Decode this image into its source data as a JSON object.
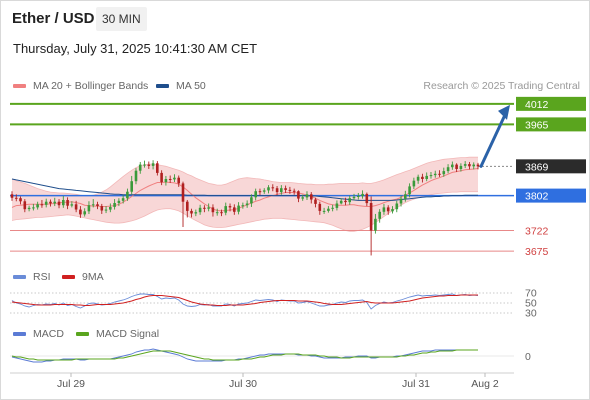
{
  "header": {
    "title": "Ether / USD",
    "timeframe": "30 MIN",
    "datetime": "Thursday, July 31, 2025 10:41:30 AM CET"
  },
  "legend": {
    "ma20_label": "MA 20 + Bollinger Bands",
    "ma50_label": "MA 50",
    "credit": "Research © 2025 Trading Central",
    "rsi_label": "RSI",
    "rsi_ma_label": "9MA",
    "macd_label": "MACD",
    "macd_signal_label": "MACD Signal"
  },
  "colors": {
    "bollinger_fill": "#f8d7d7",
    "ma20": "#f08080",
    "ma50": "#1f4e8c",
    "candle_up": "#3a9a3a",
    "candle_down": "#b02020",
    "resistance": "#5aa51e",
    "pivot": "#2f6fe0",
    "support": "#e88888",
    "last_price": "#2b2b2b",
    "arrow": "#2b62a8",
    "rsi": "#6a8cd8",
    "rsi_ma": "#d02020",
    "macd": "#5b7bd5",
    "macd_signal": "#5aa51e"
  },
  "chart_data": {
    "type": "candlestick",
    "symbol": "Ether / USD",
    "interval": "30 MIN",
    "x_tick_labels": [
      "Jul 29",
      "Jul 30",
      "Jul 31",
      "Aug 2"
    ],
    "y_range": [
      3650,
      4030
    ],
    "levels": [
      {
        "kind": "resistance",
        "value": 4012,
        "label": "4012"
      },
      {
        "kind": "resistance",
        "value": 3965,
        "label": "3965"
      },
      {
        "kind": "last",
        "value": 3869,
        "label": "3869"
      },
      {
        "kind": "pivot",
        "value": 3802,
        "label": "3802"
      },
      {
        "kind": "support",
        "value": 3722,
        "label": "3722"
      },
      {
        "kind": "support",
        "value": 3675,
        "label": "3675"
      }
    ],
    "forecast_arrow": {
      "from": 3869,
      "to": 4012
    },
    "candles": {
      "open": [
        3805,
        3797,
        3796,
        3789,
        3771,
        3774,
        3775,
        3782,
        3781,
        3788,
        3784,
        3788,
        3780,
        3792,
        3779,
        3782,
        3770,
        3759,
        3766,
        3780,
        3782,
        3778,
        3768,
        3770,
        3776,
        3785,
        3790,
        3796,
        3811,
        3835,
        3859,
        3873,
        3873,
        3870,
        3876,
        3854,
        3833,
        3840,
        3839,
        3843,
        3830,
        3788,
        3767,
        3761,
        3764,
        3774,
        3772,
        3775,
        3764,
        3764,
        3763,
        3778,
        3775,
        3765,
        3779,
        3780,
        3784,
        3798,
        3812,
        3811,
        3814,
        3821,
        3819,
        3810,
        3819,
        3815,
        3813,
        3812,
        3795,
        3798,
        3805,
        3793,
        3783,
        3767,
        3767,
        3772,
        3774,
        3784,
        3790,
        3787,
        3796,
        3799,
        3801,
        3806,
        3785,
        3722,
        3749,
        3765,
        3775,
        3766,
        3771,
        3784,
        3795,
        3805,
        3823,
        3836,
        3845,
        3840,
        3847,
        3849,
        3852,
        3851,
        3858,
        3867,
        3873,
        3863,
        3870,
        3874,
        3869,
        3873
      ],
      "close": [
        3797,
        3796,
        3789,
        3771,
        3774,
        3775,
        3782,
        3781,
        3788,
        3784,
        3788,
        3780,
        3792,
        3779,
        3782,
        3770,
        3759,
        3766,
        3780,
        3782,
        3778,
        3768,
        3770,
        3776,
        3785,
        3790,
        3796,
        3811,
        3835,
        3859,
        3873,
        3873,
        3870,
        3876,
        3854,
        3833,
        3840,
        3839,
        3843,
        3830,
        3788,
        3767,
        3761,
        3764,
        3774,
        3772,
        3775,
        3764,
        3764,
        3763,
        3778,
        3775,
        3765,
        3779,
        3780,
        3784,
        3798,
        3812,
        3811,
        3814,
        3821,
        3819,
        3810,
        3819,
        3815,
        3813,
        3812,
        3795,
        3798,
        3805,
        3793,
        3783,
        3767,
        3767,
        3772,
        3774,
        3784,
        3790,
        3787,
        3796,
        3799,
        3801,
        3806,
        3785,
        3722,
        3749,
        3765,
        3775,
        3766,
        3771,
        3784,
        3795,
        3805,
        3823,
        3836,
        3845,
        3840,
        3847,
        3849,
        3852,
        3851,
        3858,
        3867,
        3873,
        3863,
        3870,
        3874,
        3869,
        3873,
        3869
      ],
      "high": [
        3812,
        3805,
        3800,
        3794,
        3779,
        3783,
        3788,
        3792,
        3795,
        3793,
        3797,
        3794,
        3801,
        3798,
        3789,
        3790,
        3778,
        3773,
        3789,
        3794,
        3788,
        3783,
        3778,
        3784,
        3794,
        3796,
        3803,
        3818,
        3847,
        3865,
        3879,
        3882,
        3880,
        3883,
        3881,
        3860,
        3847,
        3848,
        3851,
        3848,
        3834,
        3792,
        3772,
        3770,
        3781,
        3780,
        3784,
        3782,
        3772,
        3770,
        3786,
        3784,
        3782,
        3787,
        3786,
        3791,
        3805,
        3818,
        3818,
        3819,
        3826,
        3828,
        3824,
        3826,
        3825,
        3822,
        3818,
        3814,
        3804,
        3812,
        3810,
        3797,
        3788,
        3774,
        3778,
        3781,
        3791,
        3796,
        3797,
        3802,
        3806,
        3808,
        3814,
        3809,
        3800,
        3760,
        3771,
        3783,
        3780,
        3778,
        3790,
        3802,
        3813,
        3830,
        3843,
        3850,
        3852,
        3855,
        3856,
        3859,
        3860,
        3866,
        3874,
        3880,
        3876,
        3876,
        3881,
        3879,
        3878,
        3877
      ],
      "low": [
        3790,
        3789,
        3782,
        3764,
        3766,
        3768,
        3770,
        3774,
        3775,
        3777,
        3778,
        3773,
        3774,
        3771,
        3775,
        3764,
        3751,
        3754,
        3760,
        3775,
        3771,
        3760,
        3762,
        3764,
        3770,
        3778,
        3784,
        3790,
        3805,
        3828,
        3852,
        3866,
        3863,
        3862,
        3848,
        3826,
        3825,
        3831,
        3833,
        3822,
        3730,
        3752,
        3752,
        3755,
        3758,
        3764,
        3766,
        3754,
        3756,
        3755,
        3757,
        3766,
        3758,
        3759,
        3772,
        3774,
        3776,
        3791,
        3803,
        3806,
        3807,
        3812,
        3803,
        3804,
        3808,
        3806,
        3804,
        3787,
        3790,
        3792,
        3784,
        3775,
        3758,
        3760,
        3763,
        3766,
        3768,
        3782,
        3780,
        3781,
        3791,
        3793,
        3795,
        3778,
        3665,
        3715,
        3740,
        3758,
        3758,
        3761,
        3764,
        3777,
        3788,
        3798,
        3817,
        3829,
        3832,
        3835,
        3841,
        3843,
        3845,
        3845,
        3853,
        3861,
        3856,
        3857,
        3865,
        3862,
        3862,
        3862
      ]
    },
    "ma20": [
      3775,
      3779,
      3780,
      3781,
      3782,
      3782,
      3782,
      3782,
      3782,
      3783,
      3784,
      3785,
      3787,
      3787,
      3788,
      3786,
      3784,
      3780,
      3779,
      3778,
      3778,
      3777,
      3777,
      3778,
      3779,
      3782,
      3787,
      3793,
      3800,
      3807,
      3814,
      3819,
      3824,
      3828,
      3832,
      3832,
      3833,
      3832,
      3831,
      3828,
      3822,
      3814,
      3805,
      3797,
      3790,
      3783,
      3777,
      3771,
      3768,
      3767,
      3768,
      3769,
      3770,
      3773,
      3777,
      3781,
      3785,
      3789,
      3792,
      3796,
      3799,
      3802,
      3805,
      3807,
      3809,
      3809,
      3809,
      3808,
      3806,
      3803,
      3800,
      3796,
      3791,
      3787,
      3783,
      3781,
      3780,
      3780,
      3780,
      3781,
      3781,
      3779,
      3778,
      3777,
      3777,
      3779,
      3782,
      3786,
      3789,
      3792,
      3794,
      3798,
      3803,
      3808,
      3814,
      3820,
      3826,
      3831,
      3836,
      3840,
      3843,
      3847,
      3851,
      3855,
      3857,
      3859,
      3861,
      3862,
      3863,
      3864
    ],
    "bb_upper": [
      3840,
      3836,
      3833,
      3830,
      3826,
      3822,
      3818,
      3815,
      3812,
      3810,
      3809,
      3808,
      3808,
      3807,
      3806,
      3805,
      3803,
      3802,
      3802,
      3803,
      3806,
      3810,
      3815,
      3822,
      3830,
      3838,
      3846,
      3853,
      3860,
      3866,
      3870,
      3873,
      3874,
      3874,
      3873,
      3871,
      3869,
      3866,
      3863,
      3860,
      3856,
      3851,
      3847,
      3842,
      3838,
      3834,
      3830,
      3828,
      3826,
      3826,
      3828,
      3832,
      3836,
      3840,
      3842,
      3843,
      3842,
      3841,
      3840,
      3838,
      3836,
      3834,
      3833,
      3832,
      3832,
      3832,
      3831,
      3830,
      3829,
      3828,
      3828,
      3827,
      3827,
      3827,
      3828,
      3828,
      3829,
      3830,
      3830,
      3830,
      3830,
      3830,
      3831,
      3830,
      3830,
      3832,
      3835,
      3838,
      3842,
      3846,
      3850,
      3853,
      3857,
      3860,
      3864,
      3868,
      3872,
      3876,
      3879,
      3881,
      3883,
      3885,
      3886,
      3887,
      3888,
      3889,
      3889,
      3890,
      3890,
      3890
    ],
    "bb_lower": [
      3745,
      3747,
      3748,
      3749,
      3750,
      3751,
      3752,
      3752,
      3753,
      3754,
      3755,
      3756,
      3757,
      3758,
      3757,
      3755,
      3753,
      3751,
      3749,
      3747,
      3745,
      3743,
      3741,
      3740,
      3739,
      3739,
      3740,
      3742,
      3744,
      3747,
      3751,
      3755,
      3760,
      3765,
      3769,
      3771,
      3772,
      3772,
      3770,
      3767,
      3762,
      3756,
      3750,
      3745,
      3740,
      3735,
      3732,
      3730,
      3729,
      3729,
      3730,
      3732,
      3734,
      3736,
      3738,
      3740,
      3742,
      3744,
      3746,
      3748,
      3749,
      3750,
      3750,
      3750,
      3749,
      3748,
      3747,
      3746,
      3745,
      3744,
      3743,
      3742,
      3741,
      3740,
      3737,
      3734,
      3730,
      3726,
      3722,
      3720,
      3720,
      3722,
      3725,
      3729,
      3734,
      3740,
      3747,
      3754,
      3761,
      3768,
      3774,
      3780,
      3786,
      3790,
      3794,
      3797,
      3800,
      3802,
      3804,
      3806,
      3807,
      3808,
      3809,
      3810,
      3810,
      3811,
      3811,
      3811,
      3811,
      3811
    ],
    "ma50": [
      3840,
      3838,
      3836,
      3834,
      3832,
      3830,
      3828,
      3826,
      3824,
      3822,
      3820,
      3818,
      3817,
      3816,
      3815,
      3814,
      3813,
      3812,
      3811,
      3810,
      3809,
      3808,
      3807,
      3806,
      3805,
      3805,
      3804,
      3804,
      3804,
      3804,
      3804,
      3804,
      3804,
      3804,
      3804,
      3804,
      3804,
      3804,
      3804,
      3804,
      3804,
      3803,
      3803,
      3803,
      3803,
      3803,
      3802,
      3802,
      3802,
      3802,
      3802,
      3802,
      3802,
      3802,
      3802,
      3802,
      3802,
      3802,
      3802,
      3802,
      3802,
      3802,
      3802,
      3802,
      3802,
      3802,
      3802,
      3802,
      3802,
      3802,
      3801,
      3801,
      3800,
      3799,
      3798,
      3797,
      3796,
      3795,
      3794,
      3793,
      3792,
      3791,
      3791,
      3791,
      3791,
      3791,
      3791,
      3791,
      3791,
      3791,
      3792,
      3793,
      3794,
      3795,
      3796,
      3797,
      3798,
      3799,
      3799,
      3800,
      3800,
      3801,
      3801,
      3802,
      3802,
      3802,
      3803,
      3803,
      3803,
      3803
    ],
    "rsi": {
      "levels": [
        70,
        50,
        30
      ],
      "level_labels": [
        "70",
        "50",
        "30"
      ],
      "y_range": [
        20,
        80
      ],
      "rsi": [
        55,
        50,
        48,
        44,
        42,
        45,
        47,
        46,
        48,
        47,
        49,
        46,
        50,
        45,
        47,
        43,
        40,
        44,
        49,
        50,
        48,
        46,
        47,
        49,
        52,
        54,
        56,
        59,
        63,
        66,
        68,
        68,
        67,
        67,
        63,
        58,
        60,
        59,
        60,
        56,
        48,
        44,
        43,
        44,
        47,
        46,
        47,
        44,
        44,
        44,
        48,
        47,
        44,
        48,
        49,
        50,
        53,
        56,
        55,
        56,
        57,
        56,
        53,
        56,
        55,
        54,
        54,
        50,
        51,
        53,
        50,
        47,
        44,
        44,
        46,
        47,
        50,
        52,
        51,
        54,
        55,
        55,
        56,
        51,
        38,
        45,
        49,
        52,
        50,
        51,
        54,
        56,
        59,
        62,
        64,
        66,
        64,
        65,
        65,
        66,
        65,
        66,
        67,
        68,
        65,
        66,
        67,
        65,
        66,
        65
      ],
      "ma": [
        52,
        51,
        50,
        49,
        48,
        47,
        46,
        46,
        46,
        46,
        47,
        47,
        47,
        47,
        47,
        46,
        46,
        45,
        45,
        46,
        47,
        47,
        47,
        47,
        48,
        49,
        50,
        52,
        54,
        57,
        59,
        62,
        64,
        65,
        65,
        65,
        64,
        63,
        62,
        61,
        58,
        55,
        52,
        50,
        48,
        47,
        46,
        46,
        45,
        45,
        45,
        46,
        46,
        46,
        46,
        47,
        48,
        49,
        51,
        52,
        53,
        54,
        55,
        55,
        55,
        55,
        55,
        54,
        54,
        54,
        53,
        52,
        51,
        49,
        48,
        47,
        47,
        47,
        48,
        49,
        50,
        51,
        52,
        53,
        51,
        50,
        50,
        50,
        50,
        50,
        51,
        52,
        53,
        54,
        56,
        58,
        60,
        61,
        62,
        63,
        64,
        64,
        65,
        65,
        65,
        66,
        66,
        66,
        66,
        66
      ]
    },
    "macd": {
      "zero_label": "0",
      "y_range": [
        -14,
        10
      ],
      "macd": [
        -1,
        -2,
        -3,
        -4,
        -5,
        -6,
        -6,
        -6,
        -5,
        -5,
        -4,
        -4,
        -3,
        -3,
        -3,
        -3,
        -4,
        -4,
        -3,
        -3,
        -3,
        -3,
        -3,
        -3,
        -2,
        -1,
        0,
        1,
        2,
        4,
        5,
        6,
        6,
        7,
        6,
        5,
        4,
        3,
        2,
        1,
        -1,
        -3,
        -4,
        -5,
        -5,
        -5,
        -5,
        -5,
        -5,
        -5,
        -4,
        -4,
        -4,
        -3,
        -3,
        -2,
        -1,
        0,
        1,
        1,
        2,
        2,
        2,
        2,
        2,
        2,
        2,
        1,
        1,
        1,
        0,
        0,
        -1,
        -2,
        -2,
        -2,
        -2,
        -2,
        -1,
        -1,
        -1,
        0,
        0,
        0,
        -2,
        -2,
        -1,
        -1,
        -1,
        -1,
        0,
        0,
        1,
        2,
        3,
        4,
        5,
        5,
        5,
        6,
        6,
        6,
        6,
        6,
        6,
        6,
        6,
        6,
        6,
        6
      ],
      "signal": [
        0,
        -1,
        -1,
        -2,
        -3,
        -3,
        -4,
        -4,
        -4,
        -4,
        -4,
        -4,
        -4,
        -4,
        -4,
        -3,
        -3,
        -3,
        -3,
        -3,
        -3,
        -3,
        -3,
        -3,
        -3,
        -2,
        -2,
        -1,
        0,
        1,
        2,
        3,
        4,
        5,
        5,
        5,
        5,
        5,
        4,
        3,
        2,
        1,
        0,
        -1,
        -2,
        -3,
        -3,
        -4,
        -4,
        -4,
        -4,
        -4,
        -4,
        -4,
        -3,
        -3,
        -3,
        -2,
        -1,
        -1,
        0,
        1,
        1,
        1,
        2,
        2,
        2,
        2,
        1,
        1,
        1,
        1,
        0,
        0,
        -1,
        -1,
        -1,
        -2,
        -2,
        -2,
        -1,
        -1,
        -1,
        -1,
        -1,
        -1,
        -1,
        -1,
        -1,
        -1,
        -1,
        0,
        0,
        1,
        1,
        2,
        3,
        3,
        4,
        4,
        5,
        5,
        5,
        5,
        6,
        6,
        6,
        6,
        6,
        6
      ]
    }
  }
}
